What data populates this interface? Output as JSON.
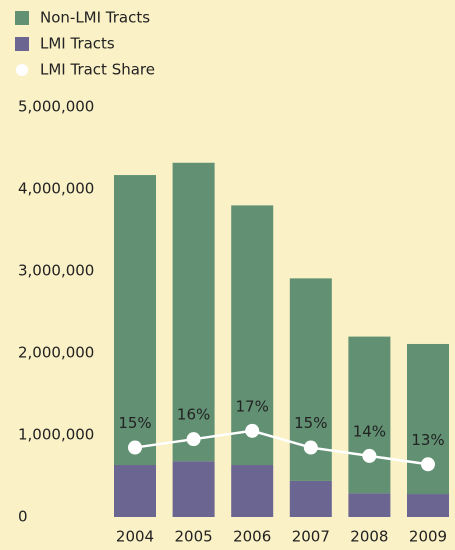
{
  "chart_data": {
    "type": "bar",
    "categories": [
      "2004",
      "2005",
      "2006",
      "2007",
      "2008",
      "2009"
    ],
    "stacked": true,
    "series": [
      {
        "name": "LMI Tracts",
        "color": "#6b6591",
        "values": [
          634000,
          680000,
          634000,
          440000,
          290000,
          280000
        ]
      },
      {
        "name": "Non-LMI Tracts",
        "color": "#619073",
        "values": [
          3536000,
          3640000,
          3166000,
          2470000,
          1910000,
          1830000
        ]
      },
      {
        "name": "LMI Tract Share",
        "type": "line",
        "color": "#ffffff",
        "axis": "y2",
        "values": [
          15,
          16,
          17,
          15,
          14,
          13
        ],
        "value_labels": [
          "15%",
          "16%",
          "17%",
          "15%",
          "14%",
          "13%"
        ]
      }
    ],
    "ylim": [
      0,
      5000000
    ],
    "yticks": [
      0,
      {
        "value": 1000000,
        "label": "1,000,000"
      },
      {
        "value": 2000000,
        "label": "2,000,000"
      },
      {
        "value": 3000000,
        "label": "3,000,000"
      },
      {
        "value": 4000000,
        "label": "4,000,000"
      },
      {
        "value": 5000000,
        "label": "5,000,000"
      }
    ],
    "y2lim": [
      6.7,
      55.7
    ],
    "legend": "top-left"
  }
}
